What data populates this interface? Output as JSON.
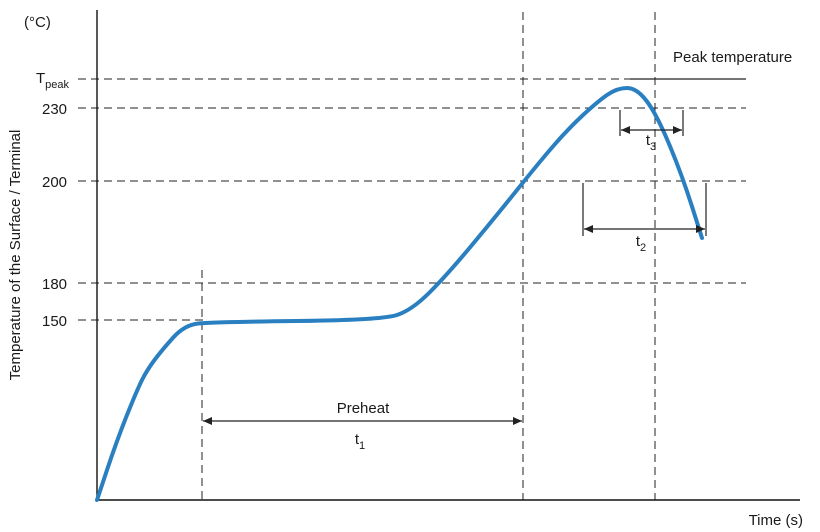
{
  "chart_data": {
    "type": "line",
    "title": "",
    "xlabel": "Time (s)",
    "ylabel": "Temperature of the Surface / Terminal",
    "y_unit": "(°C)",
    "y_ticks": [
      "230",
      "200",
      "180",
      "150"
    ],
    "y_peak_label": {
      "main": "T",
      "sub": "peak"
    },
    "series": [
      {
        "values": [
          [
            0,
            0
          ],
          [
            40,
            60
          ],
          [
            80,
            110
          ],
          [
            100,
            130
          ],
          [
            130,
            150
          ],
          [
            175,
            175
          ],
          [
            230,
            178
          ],
          [
            570,
            180
          ],
          [
            630,
            190
          ],
          [
            700,
            225
          ],
          [
            800,
            285
          ],
          [
            880,
            335
          ],
          [
            940,
            370
          ],
          [
            1000,
            398
          ],
          [
            1040,
            412
          ],
          [
            1080,
            412
          ],
          [
            1120,
            385
          ],
          [
            1170,
            325
          ],
          [
            1210,
            262
          ]
        ]
      }
    ],
    "annotations": {
      "preheat": {
        "label": "Preheat",
        "symbol": "t",
        "sub": "1"
      },
      "t2": {
        "symbol": "t",
        "sub": "2"
      },
      "t3": {
        "symbol": "t",
        "sub": "3"
      },
      "peak": {
        "label": "Peak temperature"
      }
    }
  }
}
